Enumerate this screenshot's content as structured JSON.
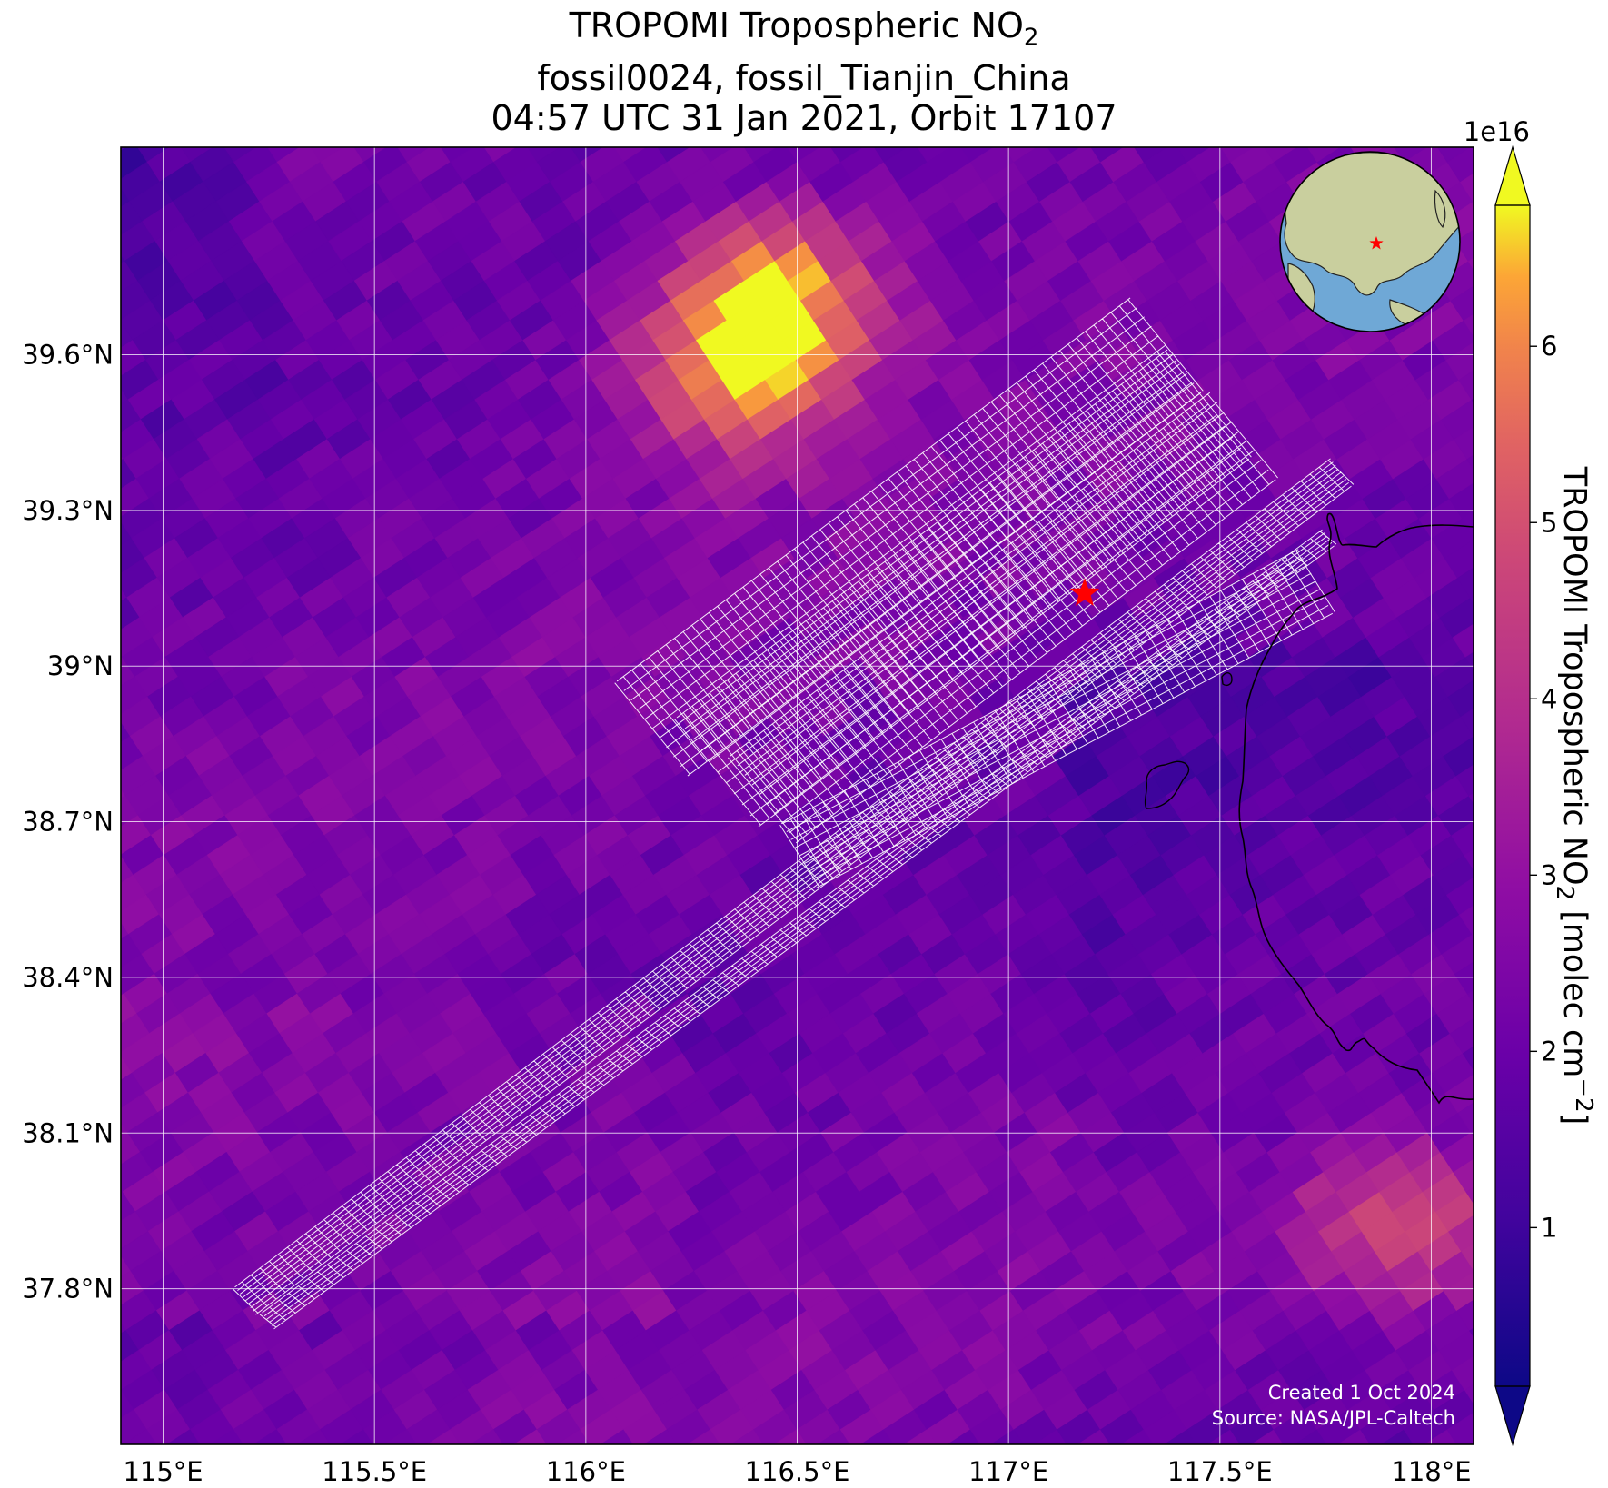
{
  "title": {
    "line1_prefix": "TROPOMI Tropospheric NO",
    "line1_sub": "2",
    "line2": "fossil0024, fossil_Tianjin_China",
    "line3": "04:57 UTC 31 Jan 2021, Orbit 17107"
  },
  "map": {
    "lon_range": [
      114.9,
      118.1
    ],
    "lat_range": [
      37.5,
      40.0
    ],
    "lon_ticks": [
      {
        "value": 115.0,
        "label": "115°E"
      },
      {
        "value": 115.5,
        "label": "115.5°E"
      },
      {
        "value": 116.0,
        "label": "116°E"
      },
      {
        "value": 116.5,
        "label": "116.5°E"
      },
      {
        "value": 117.0,
        "label": "117°E"
      },
      {
        "value": 117.5,
        "label": "117.5°E"
      },
      {
        "value": 118.0,
        "label": "118°E"
      }
    ],
    "lat_ticks": [
      {
        "value": 37.8,
        "label": "37.8°N"
      },
      {
        "value": 38.1,
        "label": "38.1°N"
      },
      {
        "value": 38.4,
        "label": "38.4°N"
      },
      {
        "value": 38.7,
        "label": "38.7°N"
      },
      {
        "value": 39.0,
        "label": "39°N"
      },
      {
        "value": 39.3,
        "label": "39.3°N"
      },
      {
        "value": 39.6,
        "label": "39.6°N"
      }
    ],
    "grid": true,
    "target": {
      "lon": 117.18,
      "lat": 39.14,
      "color": "#ff0000",
      "marker": "star"
    },
    "high_no2_regions": [
      {
        "lon": 116.35,
        "lat": 39.55,
        "value": 5.6
      },
      {
        "lon": 116.45,
        "lat": 39.72,
        "value": 6.4
      },
      {
        "lon": 117.95,
        "lat": 37.92,
        "value": 5.0
      }
    ]
  },
  "colorbar": {
    "colormap": "plasma",
    "exponent_label": "1e16",
    "range": [
      0.1,
      6.8
    ],
    "ticks": [
      {
        "value": 1,
        "label": "1"
      },
      {
        "value": 2,
        "label": "2"
      },
      {
        "value": 3,
        "label": "3"
      },
      {
        "value": 4,
        "label": "4"
      },
      {
        "value": 5,
        "label": "5"
      },
      {
        "value": 6,
        "label": "6"
      }
    ],
    "label_prefix": "TROPOMI Tropospheric NO",
    "label_sub": "2",
    "label_mid": " [molec cm",
    "label_sup": "−2",
    "label_suffix": "]",
    "extend": "both"
  },
  "inset_globe": {
    "center_marker_color": "#ff0000",
    "ocean_color": "#6fa8d6",
    "land_color": "#c9cf9e"
  },
  "credits": {
    "created": "Created 1 Oct 2024",
    "source": "Source: NASA/JPL-Caltech"
  }
}
